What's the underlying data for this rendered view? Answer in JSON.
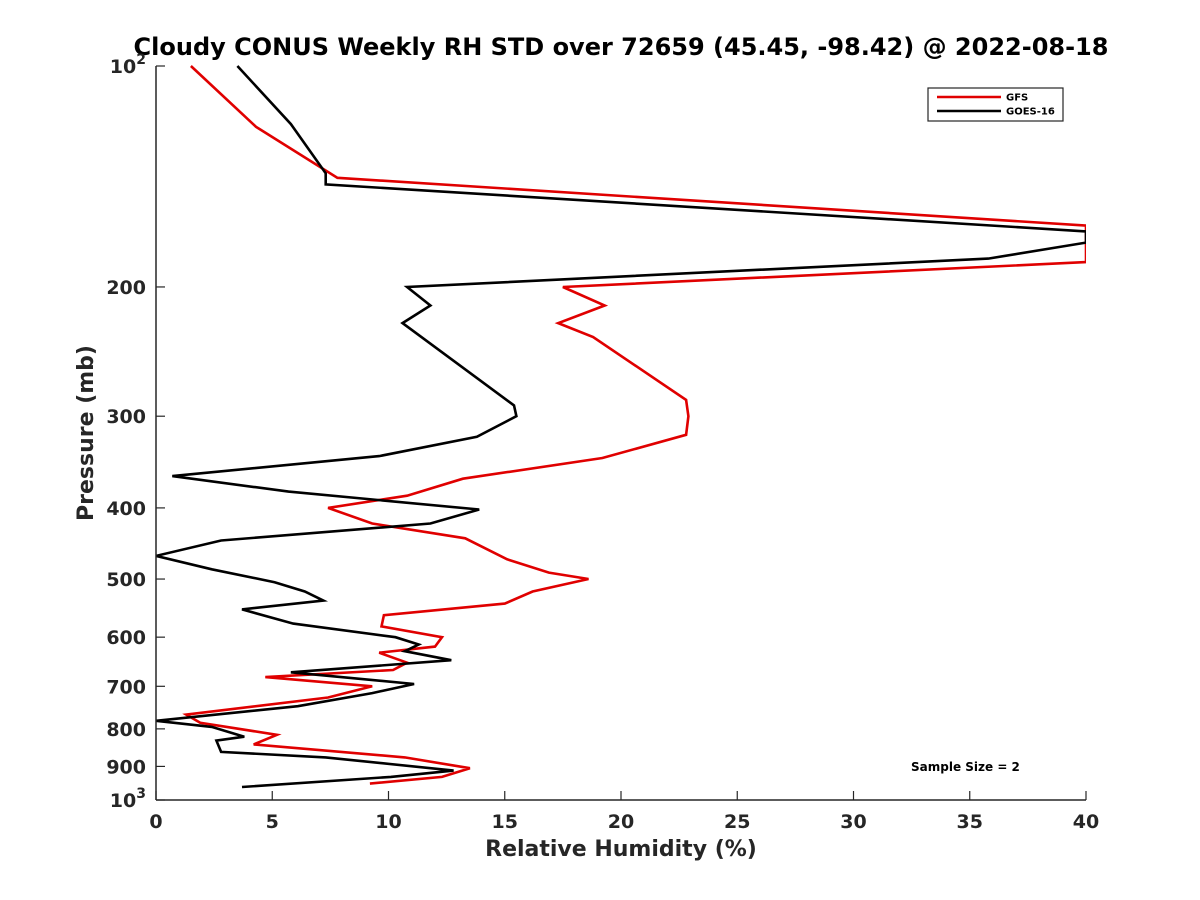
{
  "chart_data": {
    "type": "line",
    "title": "Cloudy CONUS Weekly RH STD over 72659 (45.45, -98.42) @ 2022-08-18",
    "xlabel": "Relative Humidity (%)",
    "ylabel": "Pressure (mb)",
    "xlim": [
      0,
      40
    ],
    "ylim": [
      100,
      1000
    ],
    "y_scale": "log",
    "y_reversed": true,
    "grid": false,
    "legend_position": "top-right",
    "x_ticks": [
      "0",
      "5",
      "10",
      "15",
      "20",
      "25",
      "30",
      "35",
      "40"
    ],
    "y_ticks": [
      {
        "value": 100,
        "label": "10",
        "sup": "2"
      },
      {
        "value": 200,
        "label": "200"
      },
      {
        "value": 300,
        "label": "300"
      },
      {
        "value": 400,
        "label": "400"
      },
      {
        "value": 500,
        "label": "500"
      },
      {
        "value": 600,
        "label": "600"
      },
      {
        "value": 700,
        "label": "700"
      },
      {
        "value": 800,
        "label": "800"
      },
      {
        "value": 900,
        "label": "900"
      },
      {
        "value": 1000,
        "label": "10",
        "sup": "3"
      }
    ],
    "series": [
      {
        "name": "GFS",
        "color": "#e00000",
        "x": [
          1.5,
          4.3,
          7.8,
          40,
          40,
          17.5,
          19.3,
          17.3,
          18.8,
          22.8,
          22.9,
          22.8,
          19.2,
          13.2,
          10.8,
          7.4,
          9.3,
          13.3,
          15.1,
          16.9,
          18.6,
          16.2,
          15.0,
          9.8,
          9.7,
          12.3,
          12.0,
          9.6,
          10.8,
          10.2,
          4.7,
          9.3,
          7.4,
          1.3,
          1.9,
          5.2,
          4.2,
          10.7,
          13.5,
          12.3,
          9.2
        ],
        "y": [
          100,
          121,
          142,
          165,
          185,
          200,
          212,
          224,
          234,
          285,
          300,
          318,
          342,
          365,
          385,
          400,
          420,
          440,
          470,
          490,
          500,
          520,
          540,
          560,
          580,
          600,
          618,
          630,
          650,
          665,
          680,
          700,
          725,
          765,
          785,
          815,
          840,
          875,
          905,
          930,
          950
        ]
      },
      {
        "name": "GOES-16",
        "color": "#000000",
        "x": [
          3.5,
          5.8,
          7.3,
          7.3,
          40,
          40,
          35.8,
          10.8,
          11.8,
          10.6,
          15.4,
          15.5,
          13.8,
          9.6,
          0.7,
          5.7,
          13.9,
          11.8,
          2.8,
          0,
          2.4,
          5.1,
          6.4,
          7.2,
          3.7,
          5.9,
          10.3,
          11.3,
          10.7,
          12.7,
          5.8,
          11.1,
          9.3,
          6.1,
          0,
          2.4,
          3.8,
          2.6,
          2.8,
          7.3,
          12.8,
          10.1,
          3.7
        ],
        "y": [
          100,
          120,
          140,
          145,
          168,
          174,
          183,
          200,
          212,
          224,
          290,
          300,
          320,
          340,
          362,
          380,
          402,
          420,
          443,
          465,
          485,
          505,
          520,
          535,
          550,
          575,
          600,
          614,
          627,
          645,
          670,
          695,
          715,
          745,
          780,
          795,
          820,
          830,
          860,
          875,
          912,
          930,
          960
        ]
      }
    ],
    "annotations": [
      "Sample Size = 2"
    ]
  }
}
